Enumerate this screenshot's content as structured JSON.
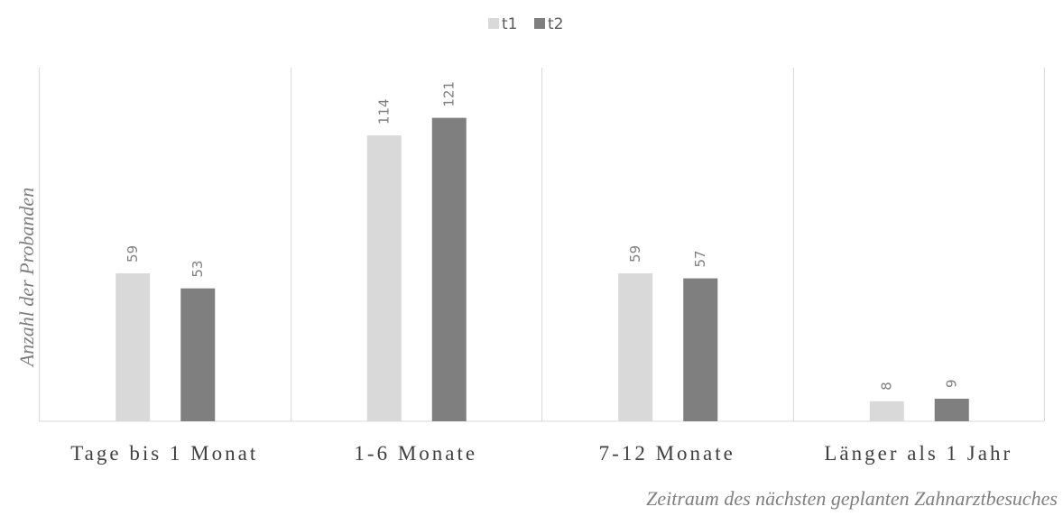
{
  "chart_data": {
    "type": "bar",
    "title": "",
    "xlabel": "Zeitraum des nächsten geplanten Zahnarztbesuches",
    "ylabel": "Anzahl der Probanden",
    "categories": [
      "Tage bis 1 Monat",
      "1-6 Monate",
      "7-12 Monate",
      "Länger als 1 Jahr"
    ],
    "series": [
      {
        "name": "t1",
        "values": [
          59,
          114,
          59,
          8
        ],
        "color": "#d9d9d9"
      },
      {
        "name": "t2",
        "values": [
          53,
          121,
          57,
          9
        ],
        "color": "#7f7f7f"
      }
    ],
    "ylim": [
      0,
      135
    ],
    "grid": false,
    "legend": "top-center",
    "data_labels": true
  }
}
